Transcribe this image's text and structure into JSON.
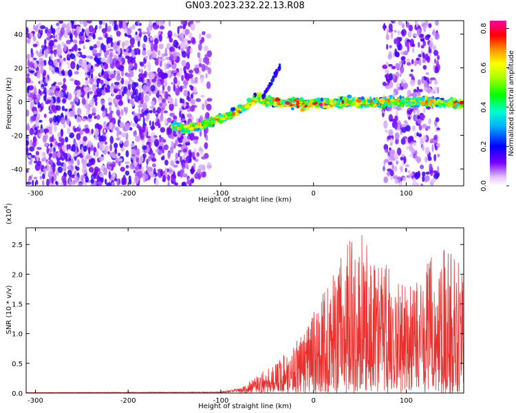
{
  "title": "GN03.2023.232.22.13.R08",
  "chart_data": [
    {
      "type": "heatmap",
      "xlabel": "Height of straight line (km)",
      "ylabel": "Frequency (Hz)",
      "xlim": [
        -310,
        162
      ],
      "ylim": [
        -50,
        48
      ],
      "xticks": [
        -300,
        -200,
        -100,
        0,
        100
      ],
      "yticks": [
        -40,
        -20,
        0,
        20,
        40
      ],
      "colorbar": {
        "label": "Normalized spectral amplitude",
        "range": [
          0.0,
          0.84
        ],
        "ticks": [
          0.0,
          0.2,
          0.4,
          0.6,
          0.8
        ]
      },
      "ridge_frequency": {
        "x": [
          -150,
          -140,
          -130,
          -120,
          -110,
          -100,
          -90,
          -80,
          -70,
          -60,
          -50,
          -40,
          -30,
          -20,
          -10,
          0,
          20,
          40,
          60,
          80,
          100,
          120,
          140,
          160
        ],
        "y": [
          -15,
          -16,
          -15,
          -14,
          -12,
          -10,
          -8,
          -5,
          -2,
          3,
          0,
          0,
          -1,
          -1,
          -2,
          -1,
          -1,
          0,
          -1,
          0,
          0,
          0,
          -1,
          -1
        ]
      },
      "noise_regions": [
        [
          -310,
          -130
        ],
        [
          75,
          130
        ]
      ]
    },
    {
      "type": "line",
      "xlabel": "Height of straight line (km)",
      "ylabel": "SNR (10 * v/v)",
      "yscale_label": "(x10",
      "yscale_exp": "4",
      "yscale_close": ")",
      "xlim": [
        -310,
        162
      ],
      "ylim": [
        0,
        2.78
      ],
      "xticks": [
        -300,
        -200,
        -100,
        0,
        100
      ],
      "yticks": [
        "0.0",
        "0.5",
        "1.0",
        "1.5",
        "2.0",
        "2.5"
      ],
      "series": [
        {
          "color": "#e8312f",
          "envelope_x": [
            -310,
            -100,
            -80,
            -60,
            -40,
            -20,
            0,
            20,
            40,
            50,
            60,
            80,
            100,
            110,
            120,
            140,
            162
          ],
          "envelope_y": [
            0.01,
            0.02,
            0.08,
            0.3,
            0.55,
            0.85,
            1.35,
            2.0,
            2.6,
            2.78,
            2.4,
            2.2,
            1.9,
            1.8,
            2.2,
            2.5,
            2.3
          ]
        }
      ]
    }
  ]
}
